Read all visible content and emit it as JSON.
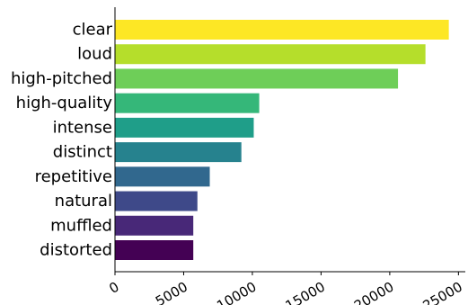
{
  "chart_data": {
    "type": "bar",
    "orientation": "horizontal",
    "title": "",
    "xlabel": "",
    "ylabel": "",
    "categories": [
      "clear",
      "loud",
      "high-pitched",
      "high-quality",
      "intense",
      "distinct",
      "repetitive",
      "natural",
      "muffled",
      "distorted"
    ],
    "values": [
      24300,
      22600,
      20600,
      10500,
      10100,
      9200,
      6900,
      6000,
      5700,
      5700
    ],
    "colors": [
      "#fde725",
      "#b5de2b",
      "#6ece58",
      "#35b779",
      "#1f9e89",
      "#26828e",
      "#31688e",
      "#3e4989",
      "#482878",
      "#440154"
    ],
    "xlim": [
      0,
      25500
    ],
    "xticks": [
      0,
      5000,
      10000,
      15000,
      20000,
      25000
    ],
    "xtick_labels": [
      "0",
      "5000",
      "10000",
      "15000",
      "20000",
      "25000"
    ],
    "xtick_rotation": 30,
    "grid": false,
    "legend": "none",
    "spines": [
      "left",
      "bottom"
    ]
  }
}
